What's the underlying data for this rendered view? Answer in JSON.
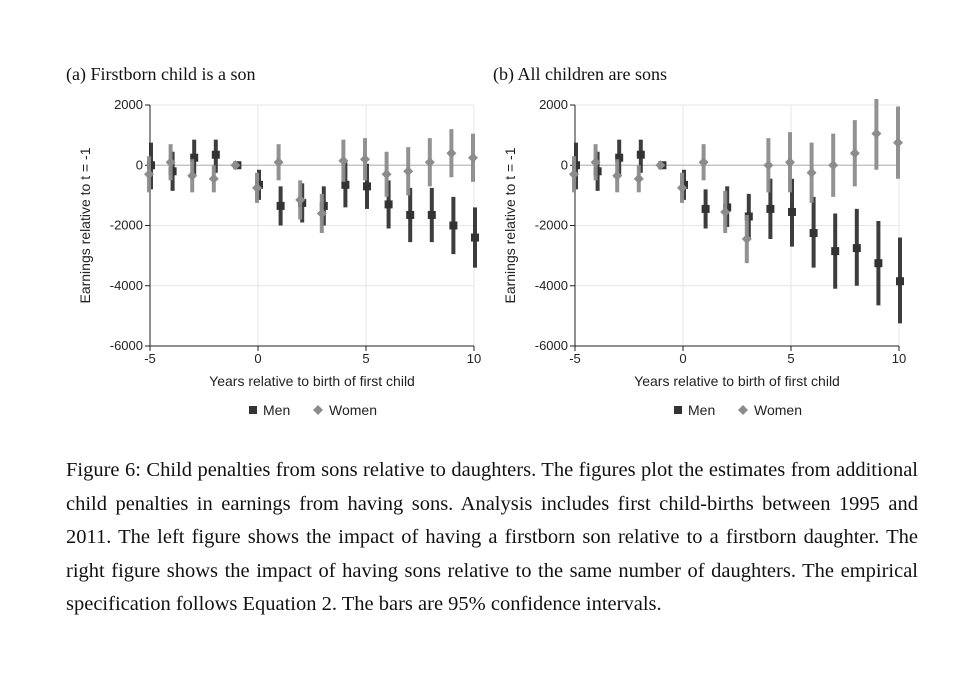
{
  "caption": "Figure 6: Child penalties from sons relative to daughters. The figures plot the estimates from additional child penalties in earnings from having sons. Analysis includes first child-births between 1995 and 2011. The left figure shows the impact of having a firstborn son relative to a firstborn daughter. The right figure shows the impact of having sons relative to the same number of daughters. The empirical specification follows Equation 2. The bars are 95% confidence intervals.",
  "colors": {
    "men": "#333333",
    "women": "#8c8c8c",
    "reference": "#bdbdbd",
    "grid": "#e6e6e6",
    "axis": "#222222"
  },
  "chart_data": [
    {
      "type": "scatter",
      "title": "(a) Firstborn child is a son",
      "xlabel": "Years relative to birth of first child",
      "ylabel": "Earnings relative to t = -1",
      "xlim": [
        -5,
        10
      ],
      "ylim": [
        -6000,
        2000
      ],
      "xticks": [
        -5,
        0,
        5,
        10
      ],
      "yticks": [
        2000,
        0,
        -2000,
        -4000,
        -6000
      ],
      "legend": {
        "position": "bottom-center",
        "entries": [
          "Men",
          "Women"
        ]
      },
      "series": [
        {
          "name": "Men",
          "marker": "square",
          "points": [
            {
              "x": -5,
              "y": 0,
              "lo": -800,
              "hi": 750
            },
            {
              "x": -4,
              "y": -200,
              "lo": -850,
              "hi": 450
            },
            {
              "x": -3,
              "y": 250,
              "lo": -350,
              "hi": 850
            },
            {
              "x": -2,
              "y": 350,
              "lo": -250,
              "hi": 850
            },
            {
              "x": -1,
              "y": 0,
              "lo": 0,
              "hi": 0
            },
            {
              "x": 0,
              "y": -650,
              "lo": -1150,
              "hi": -150
            },
            {
              "x": 1,
              "y": -1350,
              "lo": -2000,
              "hi": -700
            },
            {
              "x": 2,
              "y": -1250,
              "lo": -1900,
              "hi": -600
            },
            {
              "x": 3,
              "y": -1350,
              "lo": -2000,
              "hi": -700
            },
            {
              "x": 4,
              "y": -650,
              "lo": -1400,
              "hi": 100
            },
            {
              "x": 5,
              "y": -700,
              "lo": -1450,
              "hi": 50
            },
            {
              "x": 6,
              "y": -1300,
              "lo": -2100,
              "hi": -500
            },
            {
              "x": 7,
              "y": -1650,
              "lo": -2550,
              "hi": -750
            },
            {
              "x": 8,
              "y": -1650,
              "lo": -2550,
              "hi": -750
            },
            {
              "x": 9,
              "y": -2000,
              "lo": -2950,
              "hi": -1050
            },
            {
              "x": 10,
              "y": -2400,
              "lo": -3400,
              "hi": -1400
            }
          ]
        },
        {
          "name": "Women",
          "marker": "diamond",
          "points": [
            {
              "x": -5,
              "y": -300,
              "lo": -900,
              "hi": 300
            },
            {
              "x": -4,
              "y": 100,
              "lo": -500,
              "hi": 700
            },
            {
              "x": -3,
              "y": -350,
              "lo": -900,
              "hi": 200
            },
            {
              "x": -2,
              "y": -450,
              "lo": -900,
              "hi": 0
            },
            {
              "x": -1,
              "y": 0,
              "lo": 0,
              "hi": 0
            },
            {
              "x": 0,
              "y": -750,
              "lo": -1250,
              "hi": -250
            },
            {
              "x": 1,
              "y": 100,
              "lo": -500,
              "hi": 700
            },
            {
              "x": 2,
              "y": -1150,
              "lo": -1800,
              "hi": -500
            },
            {
              "x": 3,
              "y": -1600,
              "lo": -2250,
              "hi": -950
            },
            {
              "x": 4,
              "y": 150,
              "lo": -550,
              "hi": 850
            },
            {
              "x": 5,
              "y": 200,
              "lo": -500,
              "hi": 900
            },
            {
              "x": 6,
              "y": -300,
              "lo": -1050,
              "hi": 450
            },
            {
              "x": 7,
              "y": -200,
              "lo": -1000,
              "hi": 600
            },
            {
              "x": 8,
              "y": 100,
              "lo": -700,
              "hi": 900
            },
            {
              "x": 9,
              "y": 400,
              "lo": -400,
              "hi": 1200
            },
            {
              "x": 10,
              "y": 250,
              "lo": -550,
              "hi": 1050
            }
          ]
        }
      ]
    },
    {
      "type": "scatter",
      "title": "(b) All children are sons",
      "xlabel": "Years relative to birth of first child",
      "ylabel": "Earnings relative to t = -1",
      "xlim": [
        -5,
        10
      ],
      "ylim": [
        -6000,
        2000
      ],
      "xticks": [
        -5,
        0,
        5,
        10
      ],
      "yticks": [
        2000,
        0,
        -2000,
        -4000,
        -6000
      ],
      "legend": {
        "position": "bottom-center",
        "entries": [
          "Men",
          "Women"
        ]
      },
      "series": [
        {
          "name": "Men",
          "marker": "square",
          "points": [
            {
              "x": -5,
              "y": 0,
              "lo": -800,
              "hi": 750
            },
            {
              "x": -4,
              "y": -200,
              "lo": -850,
              "hi": 450
            },
            {
              "x": -3,
              "y": 250,
              "lo": -350,
              "hi": 850
            },
            {
              "x": -2,
              "y": 350,
              "lo": -250,
              "hi": 850
            },
            {
              "x": -1,
              "y": 0,
              "lo": 0,
              "hi": 0
            },
            {
              "x": 0,
              "y": -650,
              "lo": -1150,
              "hi": -150
            },
            {
              "x": 1,
              "y": -1450,
              "lo": -2100,
              "hi": -800
            },
            {
              "x": 2,
              "y": -1400,
              "lo": -2050,
              "hi": -700
            },
            {
              "x": 3,
              "y": -1700,
              "lo": -2450,
              "hi": -950
            },
            {
              "x": 4,
              "y": -1450,
              "lo": -2450,
              "hi": -450
            },
            {
              "x": 5,
              "y": -1550,
              "lo": -2700,
              "hi": -450
            },
            {
              "x": 6,
              "y": -2250,
              "lo": -3400,
              "hi": -1050
            },
            {
              "x": 7,
              "y": -2850,
              "lo": -4100,
              "hi": -1600
            },
            {
              "x": 8,
              "y": -2750,
              "lo": -4000,
              "hi": -1450
            },
            {
              "x": 9,
              "y": -3250,
              "lo": -4650,
              "hi": -1850
            },
            {
              "x": 10,
              "y": -3850,
              "lo": -5250,
              "hi": -2400
            }
          ]
        },
        {
          "name": "Women",
          "marker": "diamond",
          "points": [
            {
              "x": -5,
              "y": -300,
              "lo": -900,
              "hi": 300
            },
            {
              "x": -4,
              "y": 100,
              "lo": -500,
              "hi": 700
            },
            {
              "x": -3,
              "y": -350,
              "lo": -900,
              "hi": 200
            },
            {
              "x": -2,
              "y": -450,
              "lo": -900,
              "hi": 0
            },
            {
              "x": -1,
              "y": 0,
              "lo": 0,
              "hi": 0
            },
            {
              "x": 0,
              "y": -750,
              "lo": -1250,
              "hi": -250
            },
            {
              "x": 1,
              "y": 100,
              "lo": -500,
              "hi": 700
            },
            {
              "x": 2,
              "y": -1550,
              "lo": -2250,
              "hi": -850
            },
            {
              "x": 3,
              "y": -2450,
              "lo": -3250,
              "hi": -1650
            },
            {
              "x": 4,
              "y": 0,
              "lo": -900,
              "hi": 900
            },
            {
              "x": 5,
              "y": 100,
              "lo": -900,
              "hi": 1100
            },
            {
              "x": 6,
              "y": -250,
              "lo": -1250,
              "hi": 750
            },
            {
              "x": 7,
              "y": 0,
              "lo": -1050,
              "hi": 1050
            },
            {
              "x": 8,
              "y": 400,
              "lo": -700,
              "hi": 1500
            },
            {
              "x": 9,
              "y": 1050,
              "lo": -150,
              "hi": 2200
            },
            {
              "x": 10,
              "y": 750,
              "lo": -450,
              "hi": 1950
            }
          ]
        }
      ]
    }
  ]
}
